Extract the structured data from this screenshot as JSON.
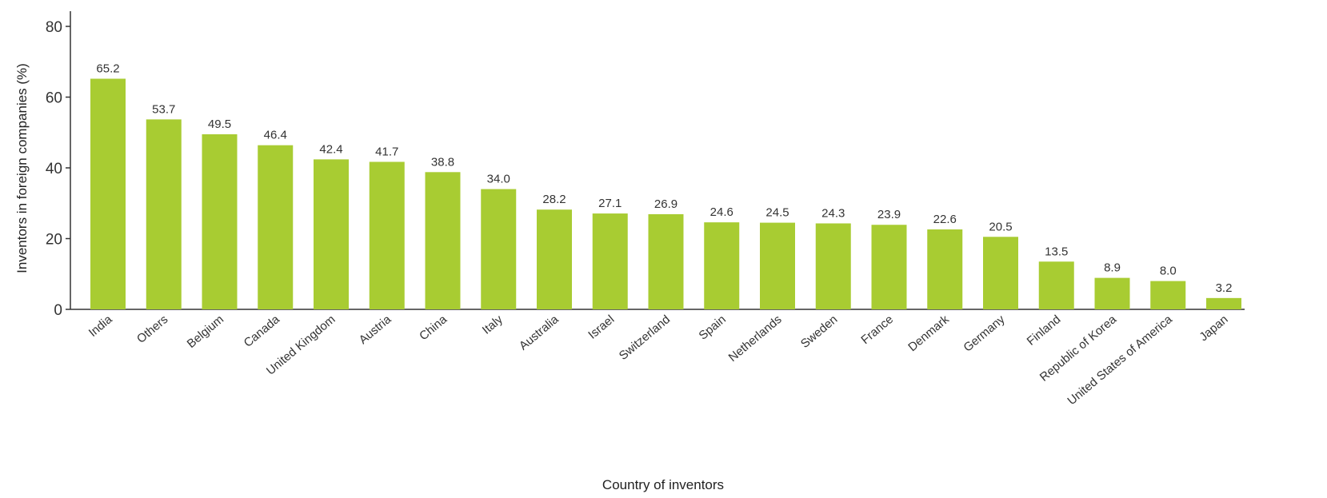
{
  "chart_data": {
    "type": "bar",
    "title": "",
    "xlabel": "Country of inventors",
    "ylabel": "Inventors in foreign companies (%)",
    "ylim": [
      0,
      80
    ],
    "yticks": [
      0,
      20,
      40,
      60,
      80
    ],
    "grid": false,
    "bar_color": "#a8cc32",
    "categories": [
      "India",
      "Others",
      "Belgium",
      "Canada",
      "United Kingdom",
      "Austria",
      "China",
      "Italy",
      "Australia",
      "Israel",
      "Switzerland",
      "Spain",
      "Netherlands",
      "Sweden",
      "France",
      "Denmark",
      "Germany",
      "Finland",
      "Republic of Korea",
      "United States of America",
      "Japan"
    ],
    "values": [
      65.2,
      53.7,
      49.5,
      46.4,
      42.4,
      41.7,
      38.8,
      34.0,
      28.2,
      27.1,
      26.9,
      24.6,
      24.5,
      24.3,
      23.9,
      22.6,
      20.5,
      13.5,
      8.9,
      8.0,
      3.2
    ],
    "value_labels": [
      "65.2",
      "53.7",
      "49.5",
      "46.4",
      "42.4",
      "41.7",
      "38.8",
      "34.0",
      "28.2",
      "27.1",
      "26.9",
      "24.6",
      "24.5",
      "24.3",
      "23.9",
      "22.6",
      "20.5",
      "13.5",
      "8.9",
      "8.0",
      "3.2"
    ]
  }
}
